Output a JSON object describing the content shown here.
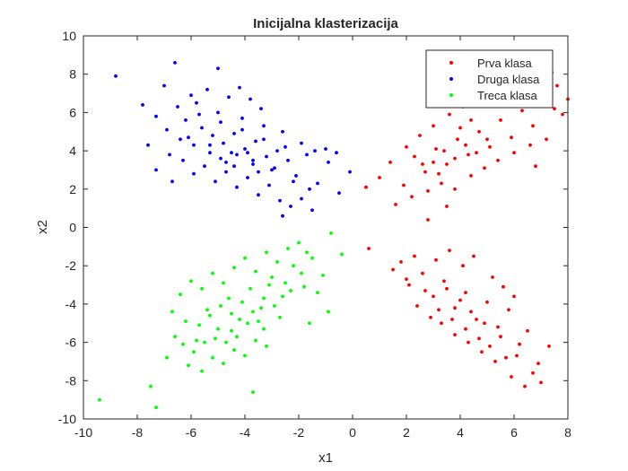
{
  "chart_data": {
    "type": "scatter",
    "title": "Inicijalna klasterizacija",
    "xlabel": "x1",
    "ylabel": "x2",
    "xlim": [
      -10,
      8
    ],
    "ylim": [
      -10,
      10
    ],
    "xticks": [
      -10,
      -8,
      -6,
      -4,
      -2,
      0,
      2,
      4,
      6,
      8
    ],
    "yticks": [
      -10,
      -8,
      -6,
      -4,
      -2,
      0,
      2,
      4,
      6,
      8,
      10
    ],
    "grid": false,
    "legend_position": "top-right",
    "series": [
      {
        "name": "Prva klasa",
        "color": "#ff0000",
        "points": [
          [
            0.6,
            -1.1
          ],
          [
            1.5,
            -2.2
          ],
          [
            2.1,
            -3.0
          ],
          [
            2.6,
            -2.4
          ],
          [
            3.0,
            -3.6
          ],
          [
            3.4,
            -2.8
          ],
          [
            3.8,
            -4.2
          ],
          [
            4.2,
            -3.4
          ],
          [
            4.6,
            -4.8
          ],
          [
            5.0,
            -3.9
          ],
          [
            5.4,
            -5.2
          ],
          [
            5.8,
            -4.3
          ],
          [
            6.2,
            -6.1
          ],
          [
            6.5,
            -5.4
          ],
          [
            6.9,
            -7.1
          ],
          [
            7.3,
            -6.2
          ],
          [
            3.1,
            -1.7
          ],
          [
            3.6,
            -1.2
          ],
          [
            4.1,
            -2.0
          ],
          [
            4.5,
            -1.5
          ],
          [
            5.2,
            -2.6
          ],
          [
            5.6,
            -3.1
          ],
          [
            6.0,
            -3.6
          ],
          [
            3.3,
            -5.0
          ],
          [
            3.8,
            -5.6
          ],
          [
            4.3,
            -6.0
          ],
          [
            4.8,
            -6.5
          ],
          [
            5.3,
            -7.0
          ],
          [
            5.9,
            -7.8
          ],
          [
            6.4,
            -8.3
          ],
          [
            2.4,
            -4.1
          ],
          [
            2.9,
            -4.7
          ],
          [
            3.5,
            -3.2
          ],
          [
            4.0,
            -3.8
          ],
          [
            4.4,
            -4.4
          ],
          [
            4.9,
            -5.0
          ],
          [
            5.5,
            -5.7
          ],
          [
            6.1,
            -6.7
          ],
          [
            6.7,
            -7.6
          ],
          [
            7.0,
            -8.1
          ],
          [
            2.0,
            -2.7
          ],
          [
            2.7,
            -3.3
          ],
          [
            3.2,
            -4.3
          ],
          [
            3.7,
            -4.8
          ],
          [
            4.2,
            -5.3
          ],
          [
            4.7,
            -5.8
          ],
          [
            5.1,
            -6.2
          ],
          [
            5.7,
            -6.8
          ],
          [
            1.8,
            -1.8
          ],
          [
            2.3,
            -1.5
          ],
          [
            0.5,
            2.1
          ],
          [
            1.0,
            2.6
          ],
          [
            1.4,
            3.4
          ],
          [
            1.9,
            2.2
          ],
          [
            2.3,
            3.7
          ],
          [
            2.7,
            2.9
          ],
          [
            3.1,
            4.1
          ],
          [
            3.5,
            3.3
          ],
          [
            3.9,
            4.6
          ],
          [
            4.3,
            3.8
          ],
          [
            4.7,
            5.0
          ],
          [
            5.1,
            4.2
          ],
          [
            5.5,
            5.6
          ],
          [
            5.9,
            4.7
          ],
          [
            6.3,
            6.1
          ],
          [
            6.7,
            5.3
          ],
          [
            7.1,
            6.8
          ],
          [
            7.5,
            6.2
          ],
          [
            7.8,
            5.9
          ],
          [
            7.2,
            4.6
          ],
          [
            2.0,
            4.2
          ],
          [
            2.5,
            4.8
          ],
          [
            3.0,
            5.3
          ],
          [
            3.6,
            5.9
          ],
          [
            4.1,
            6.3
          ],
          [
            4.6,
            6.7
          ],
          [
            5.2,
            6.4
          ],
          [
            5.7,
            6.9
          ],
          [
            6.2,
            7.3
          ],
          [
            7.4,
            8.1
          ],
          [
            1.6,
            1.2
          ],
          [
            2.2,
            1.6
          ],
          [
            2.8,
            1.9
          ],
          [
            3.3,
            2.3
          ],
          [
            3.8,
            2.0
          ],
          [
            4.4,
            2.7
          ],
          [
            4.9,
            3.1
          ],
          [
            5.4,
            3.5
          ],
          [
            6.0,
            3.9
          ],
          [
            6.6,
            4.3
          ],
          [
            3.0,
            3.4
          ],
          [
            3.4,
            4.0
          ],
          [
            3.8,
            3.6
          ],
          [
            4.2,
            4.3
          ],
          [
            4.6,
            3.9
          ],
          [
            5.0,
            4.6
          ],
          [
            3.2,
            2.8
          ],
          [
            2.6,
            3.3
          ],
          [
            4.0,
            5.2
          ],
          [
            4.4,
            5.6
          ],
          [
            7.6,
            7.4
          ],
          [
            8.0,
            6.7
          ],
          [
            2.8,
            0.4
          ],
          [
            3.5,
            1.1
          ],
          [
            6.8,
            3.2
          ]
        ]
      },
      {
        "name": "Druga klasa",
        "color": "#0000ff",
        "points": [
          [
            -8.8,
            7.9
          ],
          [
            -6.6,
            8.6
          ],
          [
            -5.0,
            8.3
          ],
          [
            -7.8,
            6.4
          ],
          [
            -7.3,
            5.8
          ],
          [
            -6.9,
            5.1
          ],
          [
            -6.5,
            6.3
          ],
          [
            -6.1,
            4.7
          ],
          [
            -5.7,
            5.9
          ],
          [
            -5.3,
            4.3
          ],
          [
            -4.9,
            5.5
          ],
          [
            -4.5,
            3.9
          ],
          [
            -4.1,
            5.1
          ],
          [
            -3.7,
            3.5
          ],
          [
            -3.3,
            4.6
          ],
          [
            -2.9,
            3.1
          ],
          [
            -2.5,
            4.2
          ],
          [
            -2.1,
            2.7
          ],
          [
            -1.7,
            3.8
          ],
          [
            -1.3,
            2.3
          ],
          [
            -0.9,
            3.4
          ],
          [
            -0.5,
            1.8
          ],
          [
            -0.1,
            2.9
          ],
          [
            -4.2,
            7.3
          ],
          [
            -3.8,
            6.7
          ],
          [
            -3.4,
            6.2
          ],
          [
            -4.6,
            6.8
          ],
          [
            -5.4,
            7.2
          ],
          [
            -6.0,
            6.9
          ],
          [
            -7.0,
            7.4
          ],
          [
            -6.3,
            3.5
          ],
          [
            -5.9,
            2.8
          ],
          [
            -5.5,
            3.2
          ],
          [
            -5.1,
            2.4
          ],
          [
            -4.7,
            2.9
          ],
          [
            -4.3,
            2.1
          ],
          [
            -3.9,
            2.6
          ],
          [
            -3.5,
            1.7
          ],
          [
            -3.1,
            2.2
          ],
          [
            -2.7,
            1.4
          ],
          [
            -2.3,
            1.1
          ],
          [
            -1.9,
            1.5
          ],
          [
            -1.5,
            0.9
          ],
          [
            -2.6,
            0.6
          ],
          [
            -7.3,
            3.0
          ],
          [
            -6.7,
            2.4
          ],
          [
            -5.2,
            4.8
          ],
          [
            -4.8,
            4.4
          ],
          [
            -4.4,
            4.9
          ],
          [
            -4.0,
            4.1
          ],
          [
            -3.6,
            4.5
          ],
          [
            -3.2,
            3.7
          ],
          [
            -2.8,
            4.0
          ],
          [
            -5.6,
            5.2
          ],
          [
            -6.2,
            5.6
          ],
          [
            -4.9,
            3.6
          ],
          [
            -4.4,
            3.2
          ],
          [
            -3.9,
            3.9
          ],
          [
            -3.5,
            2.9
          ],
          [
            -2.4,
            3.5
          ],
          [
            -1.9,
            4.4
          ],
          [
            -1.4,
            4.0
          ],
          [
            -7.6,
            4.3
          ],
          [
            -6.8,
            3.8
          ],
          [
            -5.8,
            6.5
          ],
          [
            -5.0,
            6.0
          ],
          [
            -4.1,
            5.7
          ],
          [
            -3.3,
            5.3
          ],
          [
            -2.6,
            5.0
          ],
          [
            -1.0,
            4.1
          ],
          [
            -0.6,
            3.9
          ],
          [
            -4.7,
            3.4
          ],
          [
            -4.3,
            3.8
          ],
          [
            -3.7,
            3.3
          ],
          [
            -3.0,
            3.0
          ],
          [
            -5.3,
            3.9
          ],
          [
            -5.9,
            4.3
          ],
          [
            -6.4,
            4.6
          ],
          [
            -2.2,
            2.4
          ],
          [
            -1.6,
            2.0
          ]
        ]
      },
      {
        "name": "Treca klasa",
        "color": "#00ff00",
        "points": [
          [
            -9.4,
            -9.0
          ],
          [
            -7.5,
            -8.3
          ],
          [
            -7.3,
            -9.4
          ],
          [
            -3.7,
            -8.6
          ],
          [
            -6.9,
            -6.8
          ],
          [
            -6.6,
            -5.7
          ],
          [
            -6.2,
            -4.9
          ],
          [
            -5.8,
            -5.9
          ],
          [
            -5.4,
            -4.3
          ],
          [
            -5.0,
            -5.3
          ],
          [
            -4.6,
            -3.7
          ],
          [
            -4.2,
            -4.8
          ],
          [
            -3.8,
            -3.2
          ],
          [
            -3.4,
            -4.2
          ],
          [
            -3.0,
            -2.6
          ],
          [
            -2.6,
            -3.6
          ],
          [
            -2.2,
            -2.0
          ],
          [
            -1.8,
            -3.1
          ],
          [
            -1.5,
            -1.6
          ],
          [
            -1.1,
            -2.5
          ],
          [
            -0.8,
            -0.3
          ],
          [
            -0.4,
            -1.4
          ],
          [
            -6.1,
            -7.2
          ],
          [
            -5.6,
            -7.5
          ],
          [
            -5.2,
            -6.8
          ],
          [
            -4.8,
            -7.1
          ],
          [
            -4.4,
            -6.4
          ],
          [
            -4.0,
            -6.7
          ],
          [
            -3.6,
            -5.9
          ],
          [
            -3.2,
            -6.2
          ],
          [
            -6.4,
            -3.5
          ],
          [
            -6.0,
            -2.8
          ],
          [
            -5.6,
            -3.2
          ],
          [
            -5.2,
            -2.4
          ],
          [
            -4.8,
            -2.9
          ],
          [
            -4.4,
            -2.1
          ],
          [
            -4.0,
            -1.6
          ],
          [
            -3.6,
            -2.3
          ],
          [
            -3.2,
            -1.3
          ],
          [
            -2.8,
            -1.8
          ],
          [
            -2.4,
            -1.1
          ],
          [
            -2.0,
            -0.8
          ],
          [
            -1.7,
            -1.3
          ],
          [
            -5.3,
            -4.6
          ],
          [
            -4.9,
            -4.1
          ],
          [
            -4.5,
            -4.5
          ],
          [
            -4.1,
            -3.9
          ],
          [
            -3.7,
            -4.4
          ],
          [
            -3.3,
            -3.7
          ],
          [
            -2.9,
            -4.1
          ],
          [
            -5.7,
            -5.1
          ],
          [
            -5.1,
            -5.8
          ],
          [
            -4.5,
            -5.4
          ],
          [
            -3.9,
            -5.0
          ],
          [
            -3.3,
            -5.3
          ],
          [
            -2.7,
            -4.7
          ],
          [
            -2.3,
            -3.3
          ],
          [
            -1.9,
            -2.4
          ],
          [
            -6.7,
            -4.4
          ],
          [
            -6.3,
            -6.1
          ],
          [
            -5.9,
            -6.5
          ],
          [
            -5.5,
            -6.0
          ],
          [
            -4.7,
            -6.0
          ],
          [
            -4.3,
            -5.7
          ],
          [
            -3.5,
            -4.9
          ],
          [
            -3.1,
            -3.0
          ],
          [
            -2.5,
            -2.9
          ],
          [
            -1.3,
            -3.4
          ],
          [
            -0.9,
            -4.4
          ],
          [
            -1.6,
            -5.0
          ]
        ]
      }
    ]
  }
}
